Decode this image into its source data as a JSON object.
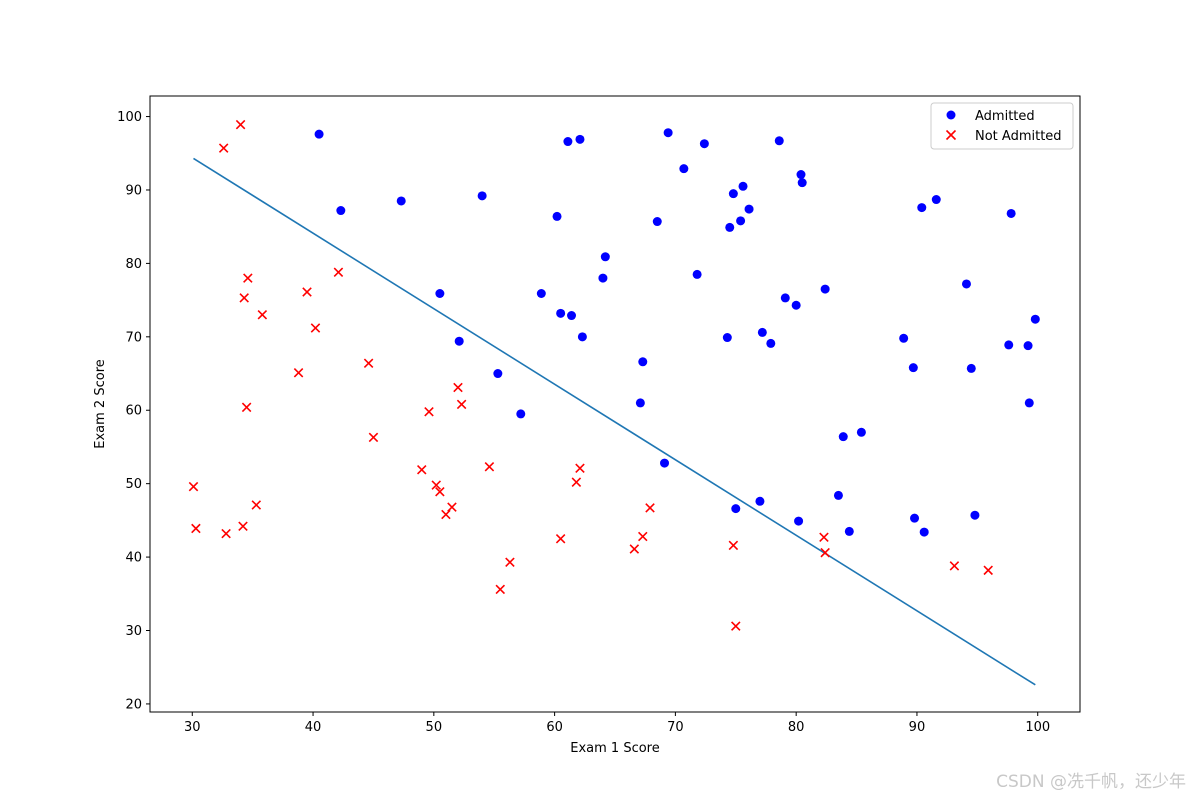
{
  "chart_data": {
    "type": "scatter",
    "xlabel": "Exam 1 Score",
    "ylabel": "Exam 2 Score",
    "xlim": [
      26.5,
      103.5
    ],
    "ylim": [
      18.9,
      102.8
    ],
    "xticks": [
      30,
      40,
      50,
      60,
      70,
      80,
      90,
      100
    ],
    "yticks": [
      20,
      30,
      40,
      50,
      60,
      70,
      80,
      90,
      100
    ],
    "grid": false,
    "legend_position": "top-right",
    "series": [
      {
        "name": "Admitted",
        "marker": "circle",
        "color": "#0000ff",
        "points": [
          [
            40.5,
            97.6
          ],
          [
            42.3,
            87.2
          ],
          [
            47.3,
            88.5
          ],
          [
            50.5,
            75.9
          ],
          [
            52.1,
            69.4
          ],
          [
            54.0,
            89.2
          ],
          [
            55.3,
            65.0
          ],
          [
            57.2,
            59.5
          ],
          [
            58.9,
            75.9
          ],
          [
            60.2,
            86.4
          ],
          [
            60.5,
            73.2
          ],
          [
            61.1,
            96.6
          ],
          [
            61.4,
            72.9
          ],
          [
            62.1,
            96.9
          ],
          [
            62.3,
            70.0
          ],
          [
            64.0,
            78.0
          ],
          [
            64.2,
            80.9
          ],
          [
            67.1,
            61.0
          ],
          [
            67.3,
            66.6
          ],
          [
            68.5,
            85.7
          ],
          [
            69.1,
            52.8
          ],
          [
            69.4,
            97.8
          ],
          [
            70.7,
            92.9
          ],
          [
            71.8,
            78.5
          ],
          [
            72.4,
            96.3
          ],
          [
            74.3,
            69.9
          ],
          [
            74.5,
            84.9
          ],
          [
            74.8,
            89.5
          ],
          [
            75.0,
            46.6
          ],
          [
            75.4,
            85.8
          ],
          [
            75.6,
            90.5
          ],
          [
            76.1,
            87.4
          ],
          [
            77.0,
            47.6
          ],
          [
            77.2,
            70.6
          ],
          [
            77.9,
            69.1
          ],
          [
            78.6,
            96.7
          ],
          [
            79.1,
            75.3
          ],
          [
            80.0,
            74.3
          ],
          [
            80.2,
            44.9
          ],
          [
            80.4,
            92.1
          ],
          [
            80.5,
            91.0
          ],
          [
            82.4,
            76.5
          ],
          [
            83.5,
            48.4
          ],
          [
            83.9,
            56.4
          ],
          [
            84.4,
            43.5
          ],
          [
            85.4,
            57.0
          ],
          [
            88.9,
            69.8
          ],
          [
            89.7,
            65.8
          ],
          [
            89.8,
            45.3
          ],
          [
            90.4,
            87.6
          ],
          [
            90.6,
            43.4
          ],
          [
            91.6,
            88.7
          ],
          [
            94.1,
            77.2
          ],
          [
            94.5,
            65.7
          ],
          [
            94.8,
            45.7
          ],
          [
            97.6,
            68.9
          ],
          [
            97.8,
            86.8
          ],
          [
            99.2,
            68.8
          ],
          [
            99.3,
            61.0
          ],
          [
            99.8,
            72.4
          ]
        ]
      },
      {
        "name": "Not Admitted",
        "marker": "x",
        "color": "#ff0000",
        "points": [
          [
            30.1,
            49.6
          ],
          [
            30.3,
            43.9
          ],
          [
            32.6,
            95.7
          ],
          [
            32.8,
            43.2
          ],
          [
            34.0,
            98.9
          ],
          [
            34.2,
            44.2
          ],
          [
            34.3,
            75.3
          ],
          [
            34.5,
            60.4
          ],
          [
            34.6,
            78.0
          ],
          [
            35.3,
            47.1
          ],
          [
            35.8,
            73.0
          ],
          [
            38.8,
            65.1
          ],
          [
            39.5,
            76.1
          ],
          [
            40.2,
            71.2
          ],
          [
            42.1,
            78.8
          ],
          [
            44.6,
            66.4
          ],
          [
            45.0,
            56.3
          ],
          [
            49.0,
            51.9
          ],
          [
            49.6,
            59.8
          ],
          [
            50.2,
            49.8
          ],
          [
            50.5,
            48.9
          ],
          [
            51.0,
            45.8
          ],
          [
            51.5,
            46.8
          ],
          [
            52.0,
            63.1
          ],
          [
            52.3,
            60.8
          ],
          [
            54.6,
            52.3
          ],
          [
            55.5,
            35.6
          ],
          [
            56.3,
            39.3
          ],
          [
            60.5,
            42.5
          ],
          [
            61.8,
            50.2
          ],
          [
            62.1,
            52.1
          ],
          [
            66.6,
            41.1
          ],
          [
            67.3,
            42.8
          ],
          [
            67.9,
            46.7
          ],
          [
            74.8,
            41.6
          ],
          [
            75.0,
            30.6
          ],
          [
            82.3,
            42.7
          ],
          [
            82.4,
            40.6
          ],
          [
            93.1,
            38.8
          ],
          [
            95.9,
            38.2
          ]
        ]
      }
    ],
    "line": {
      "x": [
        30.1,
        99.8
      ],
      "y": [
        94.3,
        22.6
      ],
      "color": "#1f77b4"
    }
  },
  "watermark": "CSDN @冼千帆，还少年"
}
